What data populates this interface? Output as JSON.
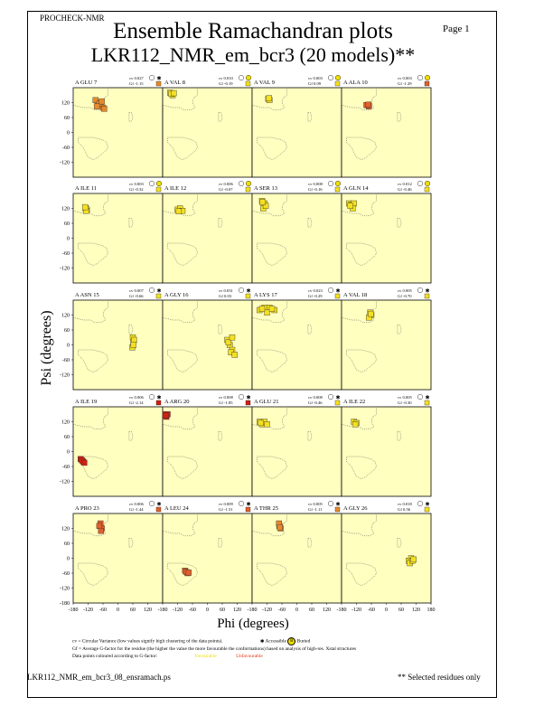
{
  "header": {
    "program": "PROCHECK-NMR",
    "page_label": "Page 1",
    "title_line1": "Ensemble Ramachandran plots",
    "title_line2": "LKR112_NMR_em_bcr3 (20 models)**"
  },
  "chart_data": {
    "type": "scatter",
    "title": "Ensemble Ramachandran plots",
    "subtitle": "LKR112_NMR_em_bcr3 (20 models)**",
    "xlabel": "Phi (degrees)",
    "ylabel": "Psi (degrees)",
    "xlim": [
      -180,
      180
    ],
    "ylim": [
      -180,
      180
    ],
    "x_ticks": [
      -180,
      -120,
      -60,
      0,
      60,
      120,
      180
    ],
    "x_tick_labels": [
      "-180",
      "-120",
      "-60",
      "0",
      "60",
      "120",
      "180"
    ],
    "y_ticks": [
      120,
      60,
      0,
      -60,
      -120
    ],
    "y_tick_labels": [
      "120",
      "60",
      "0",
      "-60",
      "-120"
    ],
    "y_bottom_label": "-180",
    "layout": "5 rows x 4 columns",
    "panels": [
      {
        "label": "A GLU 7",
        "cv": "cv 0.027",
        "gf": "Gf -1.15",
        "burial": "accessible",
        "gf_color": "#e88a2a",
        "points": [
          [
            -80,
            120
          ],
          [
            -70,
            110
          ],
          [
            -90,
            130
          ],
          [
            -60,
            100
          ],
          [
            -75,
            115
          ],
          [
            -65,
            125
          ],
          [
            -85,
            105
          ],
          [
            -55,
            95
          ]
        ]
      },
      {
        "label": "A VAL 8",
        "cv": "cv 0.010",
        "gf": "Gf -0.19",
        "burial": "buried",
        "gf_color": "#f4e020",
        "points": [
          [
            -150,
            160
          ],
          [
            -140,
            150
          ],
          [
            -145,
            155
          ],
          [
            -135,
            158
          ]
        ]
      },
      {
        "label": "A VAL 9",
        "cv": "cv 0.003",
        "gf": "Gf 0.09",
        "burial": "buried",
        "gf_color": "#f4e020",
        "points": [
          [
            -115,
            135
          ],
          [
            -110,
            130
          ],
          [
            -112,
            138
          ]
        ]
      },
      {
        "label": "A ALA 10",
        "cv": "cv 0.003",
        "gf": "Gf -1.29",
        "burial": "buried",
        "gf_color": "#e0602a",
        "points": [
          [
            -75,
            110
          ],
          [
            -70,
            105
          ],
          [
            -80,
            110
          ],
          [
            -72,
            112
          ]
        ]
      },
      {
        "label": "A ILE 11",
        "cv": "cv 0.003",
        "gf": "Gf -0.32",
        "burial": "buried",
        "gf_color": "#f4e020",
        "points": [
          [
            -130,
            120
          ],
          [
            -125,
            115
          ],
          [
            -128,
            110
          ],
          [
            -132,
            125
          ]
        ]
      },
      {
        "label": "A ILE 12",
        "cv": "cv 0.006",
        "gf": "Gf -0.07",
        "burial": "buried",
        "gf_color": "#f4e020",
        "points": [
          [
            -120,
            115
          ],
          [
            -110,
            120
          ],
          [
            -100,
            110
          ],
          [
            -115,
            108
          ]
        ]
      },
      {
        "label": "A SER 13",
        "cv": "cv 0.008",
        "gf": "Gf -0.16",
        "burial": "buried",
        "gf_color": "#f4e020",
        "points": [
          [
            -140,
            150
          ],
          [
            -130,
            140
          ],
          [
            -135,
            120
          ],
          [
            -125,
            130
          ],
          [
            -138,
            145
          ]
        ]
      },
      {
        "label": "A GLN 14",
        "cv": "cv 0.012",
        "gf": "Gf -0.46",
        "burial": "buried",
        "gf_color": "#f4e020",
        "points": [
          [
            -150,
            140
          ],
          [
            -140,
            135
          ],
          [
            -130,
            140
          ],
          [
            -135,
            120
          ],
          [
            -145,
            130
          ]
        ]
      },
      {
        "label": "A ASN 15",
        "cv": "cv 0.007",
        "gf": "Gf -0.66",
        "burial": "accessible",
        "gf_color": "#f4e020",
        "points": [
          [
            60,
            30
          ],
          [
            62,
            10
          ],
          [
            58,
            -10
          ],
          [
            65,
            20
          ],
          [
            63,
            0
          ]
        ]
      },
      {
        "label": "A GLY 16",
        "cv": "cv 0.031",
        "gf": "Gf 0.03",
        "burial": "accessible",
        "gf_color": "#f4e020",
        "points": [
          [
            80,
            20
          ],
          [
            90,
            0
          ],
          [
            100,
            -20
          ],
          [
            85,
            10
          ],
          [
            95,
            -30
          ],
          [
            110,
            -40
          ],
          [
            100,
            30
          ]
        ]
      },
      {
        "label": "A LYS 17",
        "cv": "cv 0.023",
        "gf": "Gf -0.29",
        "burial": "accessible",
        "gf_color": "#f4e020",
        "points": [
          [
            -150,
            140
          ],
          [
            -130,
            150
          ],
          [
            -110,
            150
          ],
          [
            -90,
            140
          ],
          [
            -120,
            130
          ],
          [
            -100,
            145
          ],
          [
            -140,
            145
          ]
        ]
      },
      {
        "label": "A VAL 18",
        "cv": "cv 0.005",
        "gf": "Gf -0.70",
        "burial": "accessible",
        "gf_color": "#f4e020",
        "points": [
          [
            -65,
            130
          ],
          [
            -60,
            120
          ],
          [
            -70,
            110
          ],
          [
            -62,
            125
          ]
        ]
      },
      {
        "label": "A ILE 19",
        "cv": "cv 0.006",
        "gf": "Gf -2.14",
        "burial": "accessible",
        "gf_color": "#d02010",
        "points": [
          [
            -150,
            -30
          ],
          [
            -140,
            -40
          ],
          [
            -145,
            -35
          ],
          [
            -135,
            -45
          ]
        ]
      },
      {
        "label": "A ARG 20",
        "cv": "cv 0.008",
        "gf": "Gf -1.85",
        "burial": "accessible",
        "gf_color": "#d02010",
        "points": [
          [
            -170,
            150
          ],
          [
            -165,
            140
          ],
          [
            -160,
            150
          ],
          [
            -168,
            145
          ]
        ]
      },
      {
        "label": "A GLU 21",
        "cv": "cv 0.008",
        "gf": "Gf -0.46",
        "burial": "accessible",
        "gf_color": "#f4e020",
        "points": [
          [
            -150,
            120
          ],
          [
            -140,
            110
          ],
          [
            -130,
            120
          ],
          [
            -120,
            110
          ],
          [
            -145,
            115
          ]
        ]
      },
      {
        "label": "A ILE 22",
        "cv": "cv 0.005",
        "gf": "Gf -0.30",
        "burial": "accessible",
        "gf_color": "#f4e020",
        "points": [
          [
            -130,
            120
          ],
          [
            -120,
            115
          ],
          [
            -125,
            110
          ]
        ]
      },
      {
        "label": "A PRO 23",
        "cv": "cv 0.006",
        "gf": "Gf -1.44",
        "burial": "accessible",
        "gf_color": "#e0602a",
        "points": [
          [
            -70,
            140
          ],
          [
            -65,
            120
          ],
          [
            -75,
            130
          ],
          [
            -68,
            110
          ]
        ]
      },
      {
        "label": "A LEU 24",
        "cv": "cv 0.009",
        "gf": "Gf -1.51",
        "burial": "accessible",
        "gf_color": "#e0602a",
        "points": [
          [
            -90,
            -50
          ],
          [
            -80,
            -60
          ],
          [
            -85,
            -55
          ],
          [
            -75,
            -58
          ]
        ]
      },
      {
        "label": "A THR 25",
        "cv": "cv 0.005",
        "gf": "Gf -1.11",
        "burial": "accessible",
        "gf_color": "#e88a2a",
        "points": [
          [
            -70,
            130
          ],
          [
            -65,
            120
          ],
          [
            -72,
            140
          ],
          [
            -68,
            125
          ]
        ]
      },
      {
        "label": "A GLY 26",
        "cv": "cv 0.018",
        "gf": "Gf 0.56",
        "burial": "accessible",
        "gf_color": "#f4e020",
        "points": [
          [
            90,
            -10
          ],
          [
            100,
            0
          ],
          [
            95,
            -20
          ],
          [
            105,
            -10
          ],
          [
            110,
            -5
          ]
        ]
      }
    ]
  },
  "legend": {
    "cv_text": "cv = Circular Variance (low values signify high clustering of the data points).",
    "accessible_label": "Accessible",
    "buried_label": "Buried",
    "buried_symbol": "B",
    "gf_text": "Gf = Average G-factor for the residue (the higher the value the more favourable the conformations) based on analysis of high-res. Xstal structures",
    "coloured_text": "Data points coloured according to G-factor:",
    "favourable_label": "Favourable",
    "unfavourable_label": "Unfavourable"
  },
  "footer": {
    "filename": "LKR112_NMR_em_bcr3_08_ensramach.ps",
    "footnote": "** Selected residues only"
  },
  "colors": {
    "panel_bg": "#ffffc0",
    "favourable": "#f4e020",
    "unfavourable": "#d02010"
  }
}
